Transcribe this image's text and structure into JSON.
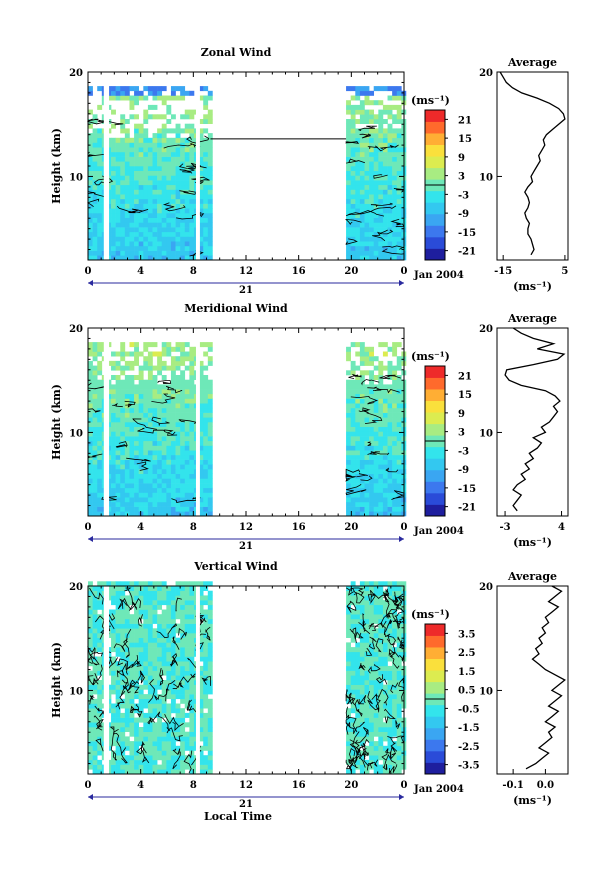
{
  "colors": {
    "scale": [
      "#1e1e9e",
      "#2a4bd8",
      "#3c78ee",
      "#3aa6f2",
      "#33c8f0",
      "#33e4ec",
      "#6ee8b8",
      "#a8ec82",
      "#dcec50",
      "#fae03c",
      "#ffae34",
      "#ff6a2c",
      "#ee2a2a"
    ],
    "wind_fill": "#39c9ec",
    "vert_fill": "#7ee8c4"
  },
  "chart_data": [
    {
      "type": "heatmap",
      "panel": "zonal",
      "title": "Zonal Wind",
      "ylabel": "Height (km)",
      "xlim": [
        0,
        24
      ],
      "ylim": [
        2,
        20
      ],
      "yticks": [
        "10",
        "20"
      ],
      "xticks": [
        "0",
        "4",
        "8",
        "12",
        "16",
        "20",
        "0"
      ],
      "date_label": "21",
      "month_label": "Jan 2004",
      "unit_label": "(ms⁻¹)",
      "colorbar_ticks": [
        "21",
        "15",
        "9",
        "3",
        "-3",
        "-9",
        "-15",
        "-21"
      ],
      "colorbar_range": [
        -24,
        24
      ],
      "data_segments_hours": [
        [
          0,
          9.3
        ],
        [
          19.6,
          24
        ]
      ],
      "profile": {
        "title": "Average",
        "xticks": [
          "-15",
          "5"
        ],
        "xlim": [
          -17,
          6
        ],
        "xlabel": "(ms⁻¹)",
        "heights_km": [
          2.5,
          3,
          3.5,
          4,
          4.5,
          5,
          5.5,
          6,
          6.5,
          7,
          7.5,
          8,
          8.5,
          9,
          9.5,
          10,
          10.5,
          11,
          11.5,
          12,
          12.5,
          13,
          13.5,
          14,
          14.5,
          15,
          15.5,
          16,
          16.5,
          17,
          17.5,
          18,
          18.5,
          19,
          19.5,
          20
        ],
        "values": [
          -6,
          -5,
          -5.5,
          -6,
          -7,
          -7,
          -6.5,
          -7.5,
          -8,
          -7,
          -6.5,
          -7,
          -8,
          -7,
          -5.5,
          -6,
          -5,
          -4,
          -3,
          -3.5,
          -2.5,
          -1.5,
          -2,
          -1,
          1,
          3,
          5,
          4.5,
          3,
          0,
          -4,
          -9,
          -12,
          -14,
          -15,
          -16
        ]
      }
    },
    {
      "type": "heatmap",
      "panel": "meridional",
      "title": "Meridional Wind",
      "ylabel": "Height (km)",
      "xlim": [
        0,
        24
      ],
      "ylim": [
        2,
        20
      ],
      "yticks": [
        "10",
        "20"
      ],
      "xticks": [
        "0",
        "4",
        "8",
        "12",
        "16",
        "20",
        "0"
      ],
      "date_label": "21",
      "month_label": "Jan 2004",
      "unit_label": "(ms⁻¹)",
      "colorbar_ticks": [
        "21",
        "15",
        "9",
        "3",
        "-3",
        "-9",
        "-15",
        "-21"
      ],
      "colorbar_range": [
        -24,
        24
      ],
      "data_segments_hours": [
        [
          0,
          9.3
        ],
        [
          19.6,
          24
        ]
      ],
      "profile": {
        "title": "Average",
        "xticks": [
          "-3",
          "4"
        ],
        "xlim": [
          -4,
          4.8
        ],
        "xlabel": "(ms⁻¹)",
        "heights_km": [
          2.5,
          3,
          3.5,
          4,
          4.5,
          5,
          5.5,
          6,
          6.5,
          7,
          7.5,
          8,
          8.5,
          9,
          9.5,
          10,
          10.5,
          11,
          11.5,
          12,
          12.5,
          13,
          13.5,
          14,
          14.5,
          15,
          15.5,
          16,
          16.5,
          17,
          17.5,
          18,
          18.5,
          19,
          19.5,
          20
        ],
        "values": [
          -1.5,
          -2,
          -1.5,
          -1,
          -2,
          -1.5,
          -0.5,
          -1,
          0,
          -0.5,
          0.5,
          0,
          1,
          1.5,
          0.5,
          2,
          1.5,
          2.5,
          3,
          3.5,
          3,
          3.8,
          3.2,
          2,
          -1,
          -2.5,
          -3,
          -2.8,
          0.5,
          3.5,
          4.3,
          1,
          3,
          0.5,
          -1,
          -2
        ]
      }
    },
    {
      "type": "heatmap",
      "panel": "vertical",
      "title": "Vertical Wind",
      "ylabel": "Height (km)",
      "xlabel": "Local Time",
      "xlim": [
        0,
        24
      ],
      "ylim": [
        2,
        20
      ],
      "yticks": [
        "10",
        "20"
      ],
      "xticks": [
        "0",
        "4",
        "8",
        "12",
        "16",
        "20",
        "0"
      ],
      "date_label": "21",
      "month_label": "Jan 2004",
      "unit_label": "(ms⁻¹)",
      "colorbar_ticks": [
        "3.5",
        "2.5",
        "1.5",
        "0.5",
        "-0.5",
        "-1.5",
        "-2.5",
        "-3.5"
      ],
      "colorbar_range": [
        -4,
        4
      ],
      "data_segments_hours": [
        [
          0,
          9.3
        ],
        [
          19.6,
          24
        ]
      ],
      "profile": {
        "title": "Average",
        "xticks": [
          "-0.1",
          "0.0"
        ],
        "xlim": [
          -0.15,
          0.07
        ],
        "xlabel": "(ms⁻¹)",
        "heights_km": [
          2.5,
          3,
          3.5,
          4,
          4.5,
          5,
          5.5,
          6,
          6.5,
          7,
          7.5,
          8,
          8.5,
          9,
          9.5,
          10,
          10.5,
          11,
          11.5,
          12,
          12.5,
          13,
          13.5,
          14,
          14.5,
          15,
          15.5,
          16,
          16.5,
          17,
          17.5,
          18,
          18.5,
          19,
          19.5,
          20
        ],
        "values": [
          -0.06,
          -0.03,
          -0.01,
          0.01,
          -0.02,
          0.0,
          0.02,
          0.01,
          0.03,
          0.0,
          0.02,
          0.04,
          0.01,
          0.03,
          0.05,
          0.02,
          0.04,
          0.06,
          0.03,
          0.0,
          -0.02,
          -0.04,
          -0.02,
          -0.03,
          -0.01,
          -0.02,
          0.0,
          -0.01,
          0.01,
          0.0,
          0.02,
          0.04,
          0.01,
          0.03,
          0.05,
          0.02
        ]
      }
    }
  ]
}
